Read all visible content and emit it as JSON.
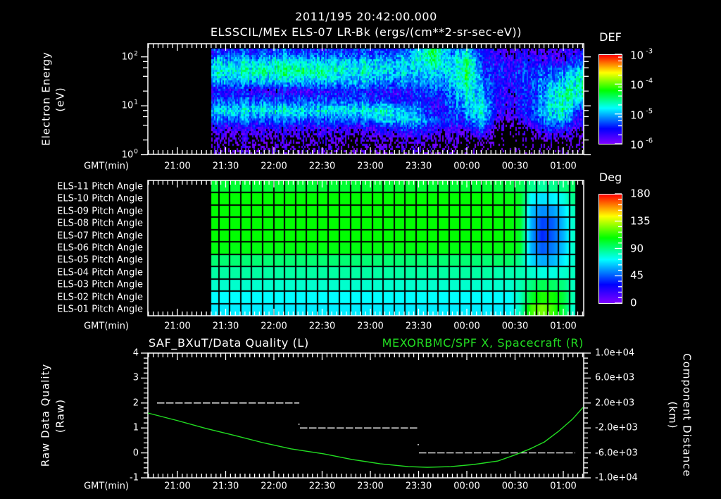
{
  "header": {
    "timestamp": "2011/195 20:42:00.000",
    "title": "ELSSCIL/MEx ELS-07 LR-Bk  (ergs/(cm**2-sr-sec-eV))"
  },
  "time_axis": {
    "label": "GMT(min)",
    "ticks": [
      "21:00",
      "21:30",
      "22:00",
      "22:30",
      "23:00",
      "23:30",
      "00:00",
      "00:30",
      "01:00"
    ]
  },
  "panel1": {
    "ylabel_line1": "Electron Energy",
    "ylabel_line2": "(eV)",
    "yticks": [
      {
        "base": "10",
        "exp": "2"
      },
      {
        "base": "10",
        "exp": "1"
      },
      {
        "base": "10",
        "exp": "0"
      }
    ],
    "colorbar": {
      "title": "DEF",
      "ticks": [
        {
          "base": "10",
          "exp": "-3"
        },
        {
          "base": "10",
          "exp": "-4"
        },
        {
          "base": "10",
          "exp": "-5"
        },
        {
          "base": "10",
          "exp": "-6"
        }
      ]
    }
  },
  "panel2": {
    "row_labels": [
      "ELS-11 Pitch Angle",
      "ELS-10 Pitch Angle",
      "ELS-09 Pitch Angle",
      "ELS-08 Pitch Angle",
      "ELS-07 Pitch Angle",
      "ELS-06 Pitch Angle",
      "ELS-05 Pitch Angle",
      "ELS-04 Pitch Angle",
      "ELS-03 Pitch Angle",
      "ELS-02 Pitch Angle",
      "ELS-01 Pitch Angle"
    ],
    "colorbar": {
      "title": "Deg",
      "ticks": [
        "180",
        "135",
        "90",
        "45",
        "0"
      ]
    }
  },
  "panel3": {
    "title_left": "SAF_BXuT/Data Quality (L)",
    "title_right": "MEXORBMC/SPF X, Spacecraft (R)",
    "ylabel_left_line1": "Raw Data Quality",
    "ylabel_left_line2": "(Raw)",
    "ylabel_right_line1": "Component Distance",
    "ylabel_right_line2": "(km)",
    "yticks_left": [
      "4",
      "3",
      "2",
      "1",
      "0",
      "-1"
    ],
    "yticks_right": [
      "1.0e+04",
      "6.0e+03",
      "2.0e+03",
      "-2.0e+03",
      "-6.0e+03",
      "-1.0e+04"
    ]
  },
  "colors": {
    "background": "#000000",
    "text": "#ffffff",
    "spacecraft_series": "#22dd22",
    "quality_series": "#ffffff"
  },
  "colormap": {
    "stops": [
      [
        0,
        "#7f00ff"
      ],
      [
        0.17,
        "#0000ff"
      ],
      [
        0.4,
        "#00ffff"
      ],
      [
        0.6,
        "#00ff00"
      ],
      [
        0.8,
        "#ffff00"
      ],
      [
        0.9,
        "#ff8000"
      ],
      [
        1,
        "#ff0000"
      ]
    ]
  },
  "chart_data": [
    {
      "id": "electron_spectrogram",
      "type": "heatmap",
      "title": "ELSSCIL/MEx ELS-07 LR-Bk  (ergs/(cm**2-sr-sec-eV))",
      "xlabel": "GMT(min)",
      "ylabel": "Electron Energy (eV)",
      "yscale": "log",
      "ylim": [
        1,
        186
      ],
      "xlim": [
        "20:42",
        "01:13"
      ],
      "x_ticks": [
        "21:00",
        "21:30",
        "22:00",
        "22:30",
        "23:00",
        "23:30",
        "00:00",
        "00:30",
        "01:00"
      ],
      "y_ticks": [
        "10^0",
        "10^1",
        "10^2"
      ],
      "colorbar": {
        "label": "DEF",
        "scale": "log",
        "range": [
          1e-06,
          0.001
        ],
        "ticks": [
          "10^-6",
          "10^-5",
          "10^-4",
          "10^-3"
        ]
      },
      "data_start": "21:21",
      "x": [
        "21:20",
        "21:30",
        "21:40",
        "21:50",
        "22:00",
        "22:10",
        "22:20",
        "22:30",
        "22:40",
        "22:50",
        "23:00",
        "23:10",
        "23:20",
        "23:30",
        "23:40",
        "23:50",
        "00:00",
        "00:10",
        "00:20",
        "00:30",
        "00:40",
        "00:50",
        "01:00",
        "01:10"
      ],
      "y_log10_energy": [
        0.1,
        0.3,
        0.5,
        0.7,
        0.9,
        1.1,
        1.3,
        1.5,
        1.7,
        1.9,
        2.1
      ],
      "z_log10_def": [
        [
          -6.1,
          -6.0,
          -5.8,
          -5.3,
          -4.8,
          -5.3,
          -5.6,
          -5.0,
          -4.8,
          -5.0,
          -5.4
        ],
        [
          -6.1,
          -6.0,
          -5.8,
          -5.3,
          -4.8,
          -5.3,
          -5.6,
          -5.0,
          -4.7,
          -4.9,
          -5.4
        ],
        [
          -6.1,
          -6.0,
          -5.8,
          -5.3,
          -4.8,
          -5.3,
          -5.6,
          -5.0,
          -4.7,
          -4.9,
          -5.4
        ],
        [
          -6.1,
          -6.0,
          -5.8,
          -5.3,
          -4.8,
          -5.3,
          -5.7,
          -5.0,
          -4.6,
          -4.9,
          -5.4
        ],
        [
          -6.1,
          -6.0,
          -5.8,
          -5.2,
          -4.8,
          -5.3,
          -5.7,
          -4.9,
          -4.6,
          -4.8,
          -5.4
        ],
        [
          -6.1,
          -6.0,
          -5.8,
          -5.2,
          -4.7,
          -5.3,
          -5.7,
          -4.9,
          -4.5,
          -4.8,
          -5.3
        ],
        [
          -6.1,
          -6.0,
          -5.8,
          -5.3,
          -4.8,
          -5.3,
          -5.7,
          -4.9,
          -4.5,
          -4.8,
          -5.4
        ],
        [
          -6.1,
          -6.0,
          -5.8,
          -5.3,
          -4.8,
          -5.3,
          -5.6,
          -4.9,
          -4.6,
          -4.9,
          -5.4
        ],
        [
          -6.1,
          -6.0,
          -5.8,
          -5.3,
          -4.8,
          -5.3,
          -5.6,
          -5.0,
          -4.7,
          -4.9,
          -5.4
        ],
        [
          -6.1,
          -6.0,
          -5.8,
          -5.2,
          -4.7,
          -5.2,
          -5.3,
          -4.9,
          -4.7,
          -4.9,
          -5.4
        ],
        [
          -6.1,
          -6.0,
          -5.8,
          -5.2,
          -4.7,
          -5.4,
          -5.6,
          -5.0,
          -4.8,
          -4.9,
          -5.4
        ],
        [
          -6.1,
          -6.0,
          -5.7,
          -5.0,
          -4.7,
          -5.4,
          -5.6,
          -5.2,
          -4.9,
          -5.0,
          -5.4
        ],
        [
          -6.1,
          -6.0,
          -5.5,
          -4.9,
          -5.0,
          -5.6,
          -5.6,
          -5.1,
          -4.9,
          -4.9,
          -5.3
        ],
        [
          -6.1,
          -5.9,
          -5.5,
          -5.0,
          -5.2,
          -5.4,
          -5.5,
          -5.2,
          -5.0,
          -4.9,
          -5.0
        ],
        [
          -6.1,
          -6.0,
          -5.7,
          -5.3,
          -5.6,
          -5.6,
          -5.3,
          -5.0,
          -4.8,
          -4.4,
          -4.3
        ],
        [
          -6.1,
          -6.0,
          -5.8,
          -5.5,
          -5.4,
          -5.3,
          -5.2,
          -5.0,
          -4.9,
          -5.0,
          -5.2
        ],
        [
          -6.2,
          -6.0,
          -5.7,
          -5.3,
          -5.0,
          -4.8,
          -4.7,
          -4.4,
          -4.3,
          -4.4,
          -4.8
        ],
        [
          -6.3,
          -6.1,
          -5.4,
          -4.9,
          -4.8,
          -4.9,
          -5.1,
          -5.3,
          -5.4,
          -5.5,
          -5.6
        ],
        [
          -6.3,
          -6.3,
          -6.2,
          -5.9,
          -5.7,
          -5.6,
          -5.6,
          -5.5,
          -5.5,
          -5.6,
          -5.7
        ],
        [
          -6.3,
          -6.3,
          -6.2,
          -5.9,
          -5.7,
          -5.6,
          -5.6,
          -5.5,
          -5.5,
          -5.6,
          -5.8
        ],
        [
          -6.3,
          -6.2,
          -6.0,
          -5.6,
          -5.4,
          -5.5,
          -5.5,
          -5.4,
          -5.5,
          -5.6,
          -5.8
        ],
        [
          -6.2,
          -6.0,
          -5.6,
          -5.1,
          -4.9,
          -4.9,
          -5.0,
          -5.1,
          -5.3,
          -5.6,
          -5.8
        ],
        [
          -6.2,
          -6.0,
          -5.6,
          -4.9,
          -4.6,
          -4.5,
          -4.6,
          -4.9,
          -5.2,
          -5.6,
          -5.8
        ],
        [
          -6.2,
          -6.1,
          -5.9,
          -5.6,
          -5.4,
          -4.9,
          -4.6,
          -4.6,
          -4.9,
          -5.3,
          -5.6
        ]
      ]
    },
    {
      "id": "pitch_angle",
      "type": "heatmap",
      "xlabel": "GMT(min)",
      "rows": [
        "ELS-11",
        "ELS-10",
        "ELS-09",
        "ELS-08",
        "ELS-07",
        "ELS-06",
        "ELS-05",
        "ELS-04",
        "ELS-03",
        "ELS-02",
        "ELS-01"
      ],
      "colorbar": {
        "label": "Deg",
        "range": [
          0,
          180
        ],
        "ticks": [
          0,
          45,
          90,
          135,
          180
        ]
      },
      "col_edges": [
        "21:21:00",
        "21:25:48",
        "21:32:36",
        "21:39:24",
        "21:46:12",
        "21:53:06",
        "21:59:54",
        "22:06:42",
        "22:13:30",
        "22:20:18",
        "22:27:06",
        "22:33:54",
        "22:40:48",
        "22:47:36",
        "22:54:24",
        "23:01:12",
        "23:08:00",
        "23:14:48",
        "23:21:36",
        "23:28:30",
        "23:35:18",
        "23:42:06",
        "23:48:54",
        "23:55:42",
        "00:02:30",
        "00:09:18",
        "00:16:12",
        "00:23:00",
        "00:29:48",
        "00:36:36",
        "00:43:24",
        "00:50:12",
        "00:57:00",
        "01:03:48",
        "01:07:24"
      ],
      "values_deg": [
        [
          101,
          101,
          101,
          101,
          101,
          101,
          101,
          101,
          101,
          101,
          101,
          101,
          101,
          101,
          101,
          101,
          101,
          101,
          101,
          101,
          101,
          101,
          101,
          101,
          101,
          101,
          99,
          99,
          97,
          88,
          85,
          88,
          90,
          94
        ],
        [
          108,
          108,
          108,
          108,
          108,
          108,
          108,
          108,
          108,
          108,
          108,
          108,
          108,
          108,
          108,
          108,
          108,
          108,
          108,
          108,
          108,
          108,
          108,
          108,
          108,
          108,
          106,
          106,
          103,
          72,
          67,
          70,
          76,
          88
        ],
        [
          108,
          108,
          108,
          108,
          108,
          108,
          108,
          108,
          108,
          108,
          108,
          108,
          108,
          108,
          108,
          108,
          108,
          108,
          108,
          108,
          108,
          108,
          108,
          108,
          108,
          108,
          108,
          108,
          103,
          63,
          53,
          56,
          67,
          81
        ],
        [
          108,
          108,
          108,
          108,
          108,
          108,
          108,
          108,
          108,
          108,
          108,
          108,
          108,
          108,
          108,
          108,
          108,
          108,
          108,
          108,
          108,
          108,
          108,
          108,
          108,
          108,
          108,
          108,
          103,
          60,
          41,
          46,
          63,
          79
        ],
        [
          108,
          108,
          108,
          108,
          108,
          108,
          108,
          108,
          108,
          108,
          108,
          108,
          108,
          108,
          108,
          108,
          108,
          108,
          108,
          108,
          108,
          108,
          108,
          108,
          108,
          108,
          108,
          108,
          103,
          58,
          36,
          46,
          60,
          79
        ],
        [
          106,
          106,
          106,
          106,
          106,
          106,
          106,
          106,
          106,
          106,
          106,
          106,
          106,
          106,
          106,
          106,
          106,
          106,
          106,
          106,
          106,
          106,
          106,
          106,
          106,
          106,
          106,
          106,
          103,
          60,
          45,
          51,
          63,
          79
        ],
        [
          92,
          92,
          92,
          92,
          92,
          92,
          92,
          92,
          92,
          92,
          92,
          92,
          92,
          92,
          92,
          92,
          92,
          92,
          92,
          92,
          92,
          92,
          92,
          92,
          92,
          92,
          94,
          94,
          88,
          67,
          58,
          60,
          70,
          79
        ],
        [
          85,
          85,
          85,
          85,
          85,
          85,
          85,
          85,
          85,
          85,
          85,
          85,
          85,
          85,
          85,
          85,
          85,
          85,
          85,
          85,
          85,
          85,
          85,
          85,
          85,
          85,
          83,
          83,
          83,
          79,
          76,
          76,
          79,
          81
        ],
        [
          79,
          79,
          79,
          79,
          79,
          79,
          79,
          79,
          79,
          79,
          79,
          79,
          79,
          79,
          79,
          79,
          79,
          79,
          79,
          79,
          79,
          79,
          79,
          79,
          79,
          79,
          79,
          79,
          83,
          90,
          97,
          94,
          90,
          81
        ],
        [
          72,
          72,
          72,
          72,
          72,
          72,
          72,
          72,
          72,
          72,
          72,
          72,
          72,
          72,
          72,
          72,
          72,
          72,
          72,
          72,
          72,
          72,
          72,
          72,
          72,
          72,
          72,
          72,
          81,
          101,
          112,
          110,
          99,
          83
        ],
        [
          69,
          69,
          69,
          69,
          69,
          69,
          69,
          69,
          69,
          69,
          69,
          69,
          69,
          69,
          69,
          69,
          69,
          69,
          69,
          69,
          69,
          69,
          69,
          69,
          69,
          69,
          69,
          70,
          81,
          116,
          125,
          116,
          99,
          79
        ]
      ]
    },
    {
      "id": "quality_and_position",
      "type": "line",
      "xlabel": "GMT(min)",
      "ylabel_left": "Raw Data Quality (Raw)",
      "ylabel_right": "Component Distance (km)",
      "ylim_left": [
        -1,
        4
      ],
      "ylim_right": [
        -10000,
        10000
      ],
      "series": [
        {
          "name": "SAF_BXuT/Data Quality (L)",
          "axis": "left",
          "style": "dashed-step",
          "segments": [
            {
              "start": "20:47:18",
              "end": "22:15:48",
              "value": 2
            },
            {
              "start": "22:16:12",
              "end": "23:29:48",
              "value": 1
            },
            {
              "start": "23:30:12",
              "end": "01:07:24",
              "value": 0
            }
          ],
          "points": [
            {
              "t": "22:15:36",
              "value": 1.15
            },
            {
              "t": "23:29:48",
              "value": 0.33
            }
          ]
        },
        {
          "name": "MEXORBMC/SPF X, Spacecraft (R)",
          "axis": "right",
          "unit": "km",
          "x": [
            "20:41:36",
            "21:00:24",
            "21:18:00",
            "21:35:30",
            "21:53:00",
            "22:10:30",
            "22:31:00",
            "22:48:36",
            "23:06:12",
            "23:23:42",
            "23:35:24",
            "23:50:00",
            "00:04:24",
            "00:19:18",
            "00:30:42",
            "00:39:24",
            "00:48:12",
            "00:57:00",
            "01:05:42",
            "01:12:18"
          ],
          "y": [
            400,
            -850,
            -2100,
            -3200,
            -4350,
            -5350,
            -6150,
            -7050,
            -7750,
            -8200,
            -8300,
            -8200,
            -7850,
            -7300,
            -6250,
            -5350,
            -4250,
            -2550,
            -600,
            1300
          ]
        }
      ]
    }
  ]
}
